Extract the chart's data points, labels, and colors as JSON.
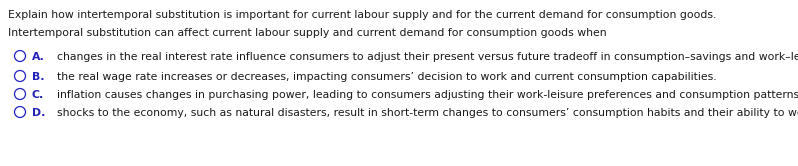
{
  "background_color": "#ffffff",
  "title_line": "Explain how intertemporal substitution is important for current labour supply and for the current demand for consumption goods.",
  "subtitle_line": "Intertemporal substitution can affect current labour supply and current demand for consumption goods when",
  "options": [
    {
      "letter": "A.",
      "text": "changes in the real interest rate influence consumers to adjust their present versus future tradeoff in consumption–savings and work–leisure decisions.",
      "letter_color": "#2222bb",
      "circle_color": "#2222bb"
    },
    {
      "letter": "B.",
      "text": "the real wage rate increases or decreases, impacting consumers’ decision to work and current consumption capabilities.",
      "letter_color": "#2222bb",
      "circle_color": "#2222bb"
    },
    {
      "letter": "C.",
      "text": "inflation causes changes in purchasing power, leading to consumers adjusting their work-leisure preferences and consumption patterns.",
      "letter_color": "#2222bb",
      "circle_color": "#2222bb"
    },
    {
      "letter": "D.",
      "text": "shocks to the economy, such as natural disasters, result in short-term changes to consumers’ consumption habits and their ability to work.",
      "letter_color": "#2222bb",
      "circle_color": "#2222bb"
    }
  ],
  "title_fontsize": 7.8,
  "subtitle_fontsize": 7.8,
  "option_fontsize": 7.8,
  "text_color": "#1a1a1a",
  "figsize": [
    7.98,
    1.66
  ],
  "dpi": 100
}
